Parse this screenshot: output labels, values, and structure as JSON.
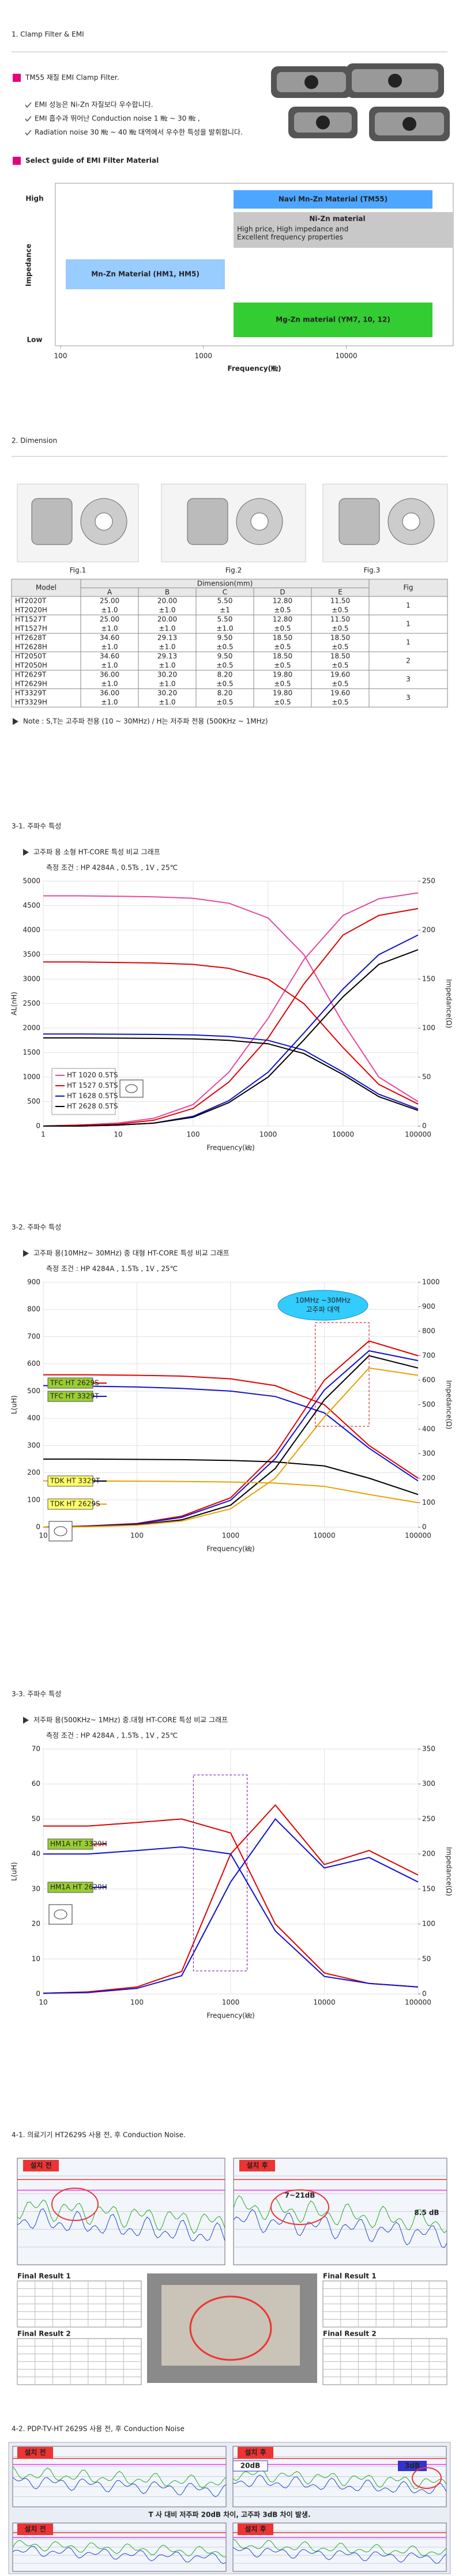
{
  "intro": {
    "heading": "1. Clamp Filter & EMI",
    "product": "TM55 재질 EMI Clamp Filter.",
    "bullets": [
      "EMI 성능은 Ni-Zn 자질보다 우수합니다.",
      "EMI 흡수과 뛰어난 Conduction noise 1 ㎒ ~ 30 ㎒ ,",
      "Radiation noise 30 ㎒ ~ 40 ㎒ 대역에서 우수한 특성을 발휘합니다."
    ],
    "guide_heading": "Select guide of EMI Filter Material"
  },
  "chart_data": [
    {
      "type": "region",
      "y_high": "High",
      "y_label": "Impedance",
      "y_low": "Low",
      "x_label": "Frequency(㎒)",
      "xlog": true,
      "xlim": [
        100,
        56000
      ],
      "xticks": [
        100,
        1000,
        10000
      ],
      "regions": [
        {
          "name": "Navi Mn-Zn Material (TM55)",
          "color": "#4da6ff",
          "text_color": "#e60000"
        },
        {
          "name": "Ni-Zn material",
          "note": [
            "High price, High impedance and",
            "Excellent frequency properties"
          ],
          "color": "#c8c8c8",
          "text_color": "#222222"
        },
        {
          "name": "Mn-Zn Material (HM1, HM5)",
          "color": "#99ccff",
          "text_color": "#1a3d99"
        },
        {
          "name": "Mg-Zn material (YM7, 10, 12)",
          "color": "#33cc33",
          "text_color": "#0a3d0a"
        }
      ]
    },
    {
      "type": "line",
      "heading": "3-1. 주파수 특성",
      "title": "고주파 용 소형 HT-CORE 특성 비교 그래프",
      "subtitle": "측정 조건 : HP 4284A , 0.5Ts , 1V , 25℃",
      "y_label": "AL(nH)",
      "y2_label": "Impedance(Ω)",
      "x_label": "Frequency(㎑)",
      "xlog": true,
      "grid": true,
      "legend": "lower left",
      "x": [
        1,
        3,
        10,
        30,
        100,
        300,
        1000,
        3000,
        10000,
        30000,
        100000
      ],
      "xlim": [
        1,
        100000
      ],
      "xticks": [
        1,
        10,
        100,
        1000,
        10000,
        100000
      ],
      "ylim": [
        0,
        5000
      ],
      "yticks": [
        0,
        500,
        1000,
        1500,
        2000,
        2500,
        3000,
        3500,
        4000,
        4500,
        5000
      ],
      "y2lim": [
        0,
        250
      ],
      "y2ticks": [
        0,
        50,
        100,
        150,
        200,
        250
      ],
      "series": [
        {
          "name": "HT 1020 0.5TS",
          "color": "#e8479b",
          "values": [
            4700,
            4700,
            4690,
            4680,
            4650,
            4550,
            4250,
            3500,
            2100,
            1000,
            500
          ],
          "y2_values": [
            0,
            1,
            3,
            8,
            22,
            55,
            110,
            170,
            215,
            232,
            238
          ]
        },
        {
          "name": "HT 1527 0.5TS",
          "color": "#e00000",
          "values": [
            3350,
            3350,
            3340,
            3330,
            3300,
            3220,
            3000,
            2500,
            1600,
            850,
            450
          ],
          "y2_values": [
            0,
            1,
            2,
            6,
            18,
            45,
            90,
            145,
            195,
            215,
            222
          ]
        },
        {
          "name": "HT 1628 0.5TS",
          "color": "#1010d0",
          "values": [
            1880,
            1880,
            1875,
            1870,
            1860,
            1830,
            1750,
            1550,
            1100,
            650,
            350
          ],
          "y2_values": [
            0,
            0,
            1,
            3,
            10,
            26,
            55,
            95,
            140,
            175,
            195
          ]
        },
        {
          "name": "HT 2628 0.5TS",
          "color": "#000000",
          "values": [
            1800,
            1800,
            1795,
            1790,
            1780,
            1750,
            1680,
            1480,
            1050,
            600,
            320
          ],
          "y2_values": [
            0,
            0,
            1,
            3,
            9,
            24,
            50,
            88,
            132,
            165,
            180
          ]
        }
      ]
    },
    {
      "type": "line",
      "heading": "3-2. 주파수 특성",
      "title": "고주파 용(10MHz~ 30MHz) 중 대형 HT-CORE 특성 비교 그래프",
      "subtitle": "측정 조건 : HP 4284A , 1.5Ts , 1V , 25℃",
      "y_label": "L(uH)",
      "y2_label": "Impedance(Ω)",
      "x_label": "Frequency(㎑)",
      "xlog": true,
      "grid": true,
      "legend": "left",
      "annotation": [
        "10MHz ~30MHz",
        "고주파 대역"
      ],
      "x": [
        10,
        30,
        100,
        300,
        1000,
        3000,
        10000,
        30000,
        100000
      ],
      "xlim": [
        10,
        100000
      ],
      "xticks": [
        10,
        100,
        1000,
        10000,
        100000
      ],
      "ylim": [
        0,
        900
      ],
      "yticks": [
        0,
        100,
        200,
        300,
        400,
        500,
        600,
        700,
        800,
        900
      ],
      "y2lim": [
        0,
        1000
      ],
      "y2ticks": [
        0,
        100,
        200,
        300,
        400,
        500,
        600,
        700,
        800,
        900,
        1000
      ],
      "series": [
        {
          "name": "TFC HT 2629S",
          "color": "#e00000",
          "label_fill": "#9acd32",
          "values": [
            560,
            560,
            558,
            555,
            545,
            520,
            450,
            300,
            180
          ],
          "y2_values": [
            0,
            5,
            15,
            45,
            120,
            300,
            600,
            760,
            700
          ]
        },
        {
          "name": "TFC HT 3329T",
          "color": "#1010d0",
          "label_fill": "#9acd32",
          "values": [
            520,
            518,
            515,
            510,
            500,
            480,
            420,
            290,
            170
          ],
          "y2_values": [
            0,
            4,
            13,
            40,
            110,
            280,
            560,
            720,
            680
          ]
        },
        {
          "name": "TDK HT 3329T",
          "color": "#000000",
          "label_fill": "#ffff66",
          "values": [
            250,
            250,
            249,
            248,
            245,
            240,
            225,
            180,
            120
          ],
          "y2_values": [
            0,
            3,
            10,
            30,
            90,
            240,
            520,
            700,
            650
          ]
        },
        {
          "name": "TDK HT 2629S",
          "color": "#e8a000",
          "label_fill": "#ffff66",
          "values": [
            170,
            170,
            169,
            168,
            166,
            162,
            150,
            120,
            90
          ],
          "y2_values": [
            0,
            2,
            8,
            25,
            75,
            200,
            450,
            650,
            620
          ]
        }
      ]
    },
    {
      "type": "line",
      "heading": "3-3. 주파수 특성",
      "title": "저주파 용(500KHz~ 1MHz) 중.대형 HT-CORE 특성 비교 그래프",
      "subtitle": "측정 조건 : HP 4284A , 1.5Ts , 1V , 25℃",
      "y_label": "L(uH)",
      "y2_label": "Impedance(Ω)",
      "x_label": "Frequency(㎑)",
      "xlog": true,
      "grid": true,
      "legend": "left",
      "x": [
        10,
        30,
        100,
        300,
        1000,
        3000,
        10000,
        30000,
        100000
      ],
      "xlim": [
        10,
        100000
      ],
      "xticks": [
        10,
        100,
        1000,
        10000,
        100000
      ],
      "ylim": [
        0,
        70
      ],
      "yticks": [
        0,
        10,
        20,
        30,
        40,
        50,
        60,
        70
      ],
      "y2lim": [
        0,
        350
      ],
      "y2ticks": [
        0,
        50,
        100,
        150,
        200,
        250,
        300,
        350
      ],
      "series": [
        {
          "name": "HM1A HT 3329H",
          "color": "#e00000",
          "label_fill": "#9acd32",
          "values": [
            48,
            48,
            49,
            50,
            46,
            20,
            6,
            3,
            2
          ],
          "y2_values": [
            1,
            3,
            10,
            32,
            200,
            270,
            185,
            205,
            170
          ]
        },
        {
          "name": "HM1A HT 2629H",
          "color": "#1010d0",
          "label_fill": "#9acd32",
          "values": [
            40,
            40,
            41,
            42,
            40,
            18,
            5,
            3,
            2
          ],
          "y2_values": [
            1,
            2,
            8,
            26,
            160,
            250,
            180,
            195,
            160
          ]
        }
      ]
    }
  ],
  "dimension": {
    "heading": "2. Dimension",
    "figures": [
      "Fig.1",
      "Fig.2",
      "Fig.3"
    ],
    "table": {
      "header": [
        "Model",
        "Dimension(mm)",
        "Fig"
      ],
      "columns": [
        "A",
        "B",
        "C",
        "D",
        "E"
      ],
      "rows": [
        {
          "models": [
            "HT2020T",
            "HT2020H"
          ],
          "dims": [
            [
              "25.00",
              "±1.0"
            ],
            [
              "20.00",
              "±1.0"
            ],
            [
              "5.50",
              "±1"
            ],
            [
              "12.80",
              "±0.5"
            ],
            [
              "11.50",
              "±0.5"
            ]
          ],
          "fig": "1"
        },
        {
          "models": [
            "HT1527T",
            "HT1527H"
          ],
          "dims": [
            [
              "25.00",
              "±1.0"
            ],
            [
              "20.00",
              "±1.0"
            ],
            [
              "5.50",
              "±1.0"
            ],
            [
              "12.80",
              "±0.5"
            ],
            [
              "11.50",
              "±0.5"
            ]
          ],
          "fig": "1"
        },
        {
          "models": [
            "HT2628T",
            "HT2628H"
          ],
          "dims": [
            [
              "34.60",
              "±1.0"
            ],
            [
              "29.13",
              "±1.0"
            ],
            [
              "9.50",
              "±0.5"
            ],
            [
              "18.50",
              "±0.5"
            ],
            [
              "18.50",
              "±0.5"
            ]
          ],
          "fig": "1"
        },
        {
          "models": [
            "HT2050T",
            "HT2050H"
          ],
          "dims": [
            [
              "34.60",
              "±1.0"
            ],
            [
              "29.13",
              "±1.0"
            ],
            [
              "9.50",
              "±0.5"
            ],
            [
              "18.50",
              "±0.5"
            ],
            [
              "18.50",
              "±0.5"
            ]
          ],
          "fig": "2"
        },
        {
          "models": [
            "HT2629T",
            "HT2629H"
          ],
          "dims": [
            [
              "36.00",
              "±1.0"
            ],
            [
              "30.20",
              "±1.0"
            ],
            [
              "8.20",
              "±0.5"
            ],
            [
              "19.80",
              "±0.5"
            ],
            [
              "19.60",
              "±0.5"
            ]
          ],
          "fig": "3"
        },
        {
          "models": [
            "HT3329T",
            "HT3329H"
          ],
          "dims": [
            [
              "36.00",
              "±1.0"
            ],
            [
              "30.20",
              "±1.0"
            ],
            [
              "8.20",
              "±0.5"
            ],
            [
              "19.80",
              "±0.5"
            ],
            [
              "19.60",
              "±0.5"
            ]
          ],
          "fig": "3"
        }
      ]
    },
    "note": "Note : S,T는 고주파 전용 (10 ~ 30MHz) / H는 저주파 전용 (500KHz ~ 1MHz)"
  },
  "noise": [
    {
      "heading": "4-1. 의료기기 HT2629S 사용 전, 후 Conduction Noise.",
      "before": "설치 전",
      "after": "설치 후",
      "annotations": [
        "7~21dB",
        "8.5 dB"
      ],
      "results": [
        "Final Result 1",
        "Final Result 2",
        "Final Result 1",
        "Final Result 2"
      ]
    },
    {
      "heading": "4-2. PDP-TV-HT 2629S 사용 전, 후 Conduction Noise",
      "before": "설치 전",
      "after": "설치 후",
      "annotations": [
        "20dB",
        "3dB"
      ],
      "summary": "T 사 대비 저주파 20dB 차이, 고주파 3dB 차이 발생.",
      "lower_labels": [
        "설치 전",
        "설치 후"
      ]
    }
  ]
}
